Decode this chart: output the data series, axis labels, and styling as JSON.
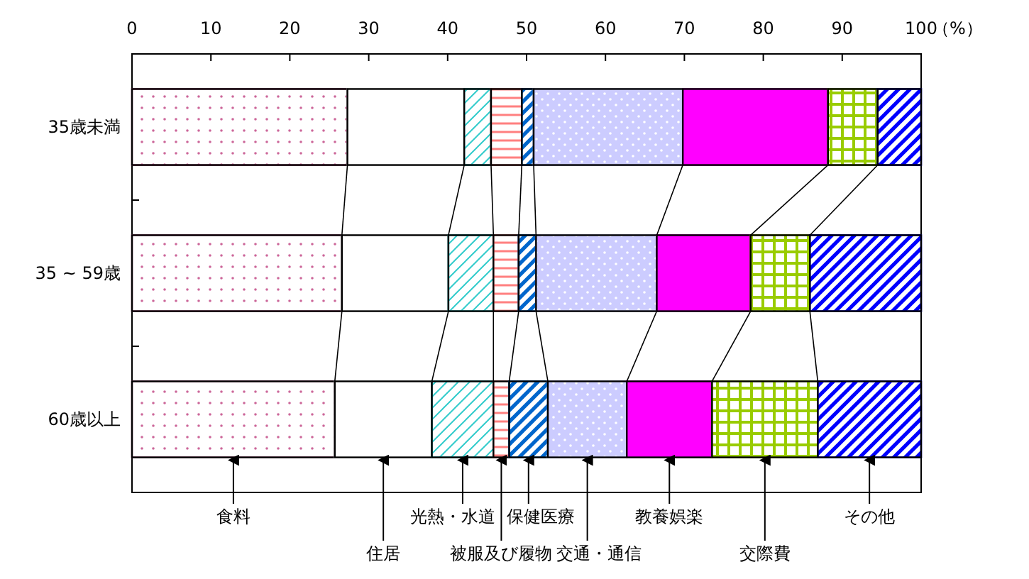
{
  "chart_data": {
    "type": "bar",
    "orientation": "horizontal",
    "stacked": true,
    "legend": "bottom",
    "xlabel": "（%）",
    "categories": [
      "35歳未満",
      "35 ~ 59歳",
      "60歳以上"
    ],
    "xlim": [
      0,
      100
    ],
    "xticks": [
      0,
      10,
      20,
      30,
      40,
      50,
      60,
      70,
      80,
      90,
      100
    ],
    "series": [
      {
        "name": "食料",
        "color": "#cc6699",
        "values": [
          27.3,
          26.6,
          25.7
        ]
      },
      {
        "name": "住居",
        "color": "#ffffff",
        "values": [
          14.8,
          13.5,
          12.3
        ]
      },
      {
        "name": "光熱・水道",
        "color": "#33cccc",
        "values": [
          3.4,
          5.7,
          7.8
        ]
      },
      {
        "name": "被服及び履物",
        "color": "#ff8080",
        "values": [
          3.9,
          3.2,
          2.0
        ]
      },
      {
        "name": "保健医療",
        "color": "#0066cc",
        "values": [
          1.5,
          2.2,
          4.9
        ]
      },
      {
        "name": "交通・通信",
        "color": "#ccccff",
        "values": [
          18.9,
          15.3,
          10.0
        ]
      },
      {
        "name": "教養娯楽",
        "color": "#ff00ff",
        "values": [
          18.4,
          11.9,
          10.8
        ]
      },
      {
        "name": "交際費",
        "color": "#99cc00",
        "values": [
          6.3,
          7.5,
          13.4
        ]
      },
      {
        "name": "その他",
        "color": "#0000ff",
        "values": [
          5.5,
          14.1,
          13.1
        ]
      }
    ]
  }
}
